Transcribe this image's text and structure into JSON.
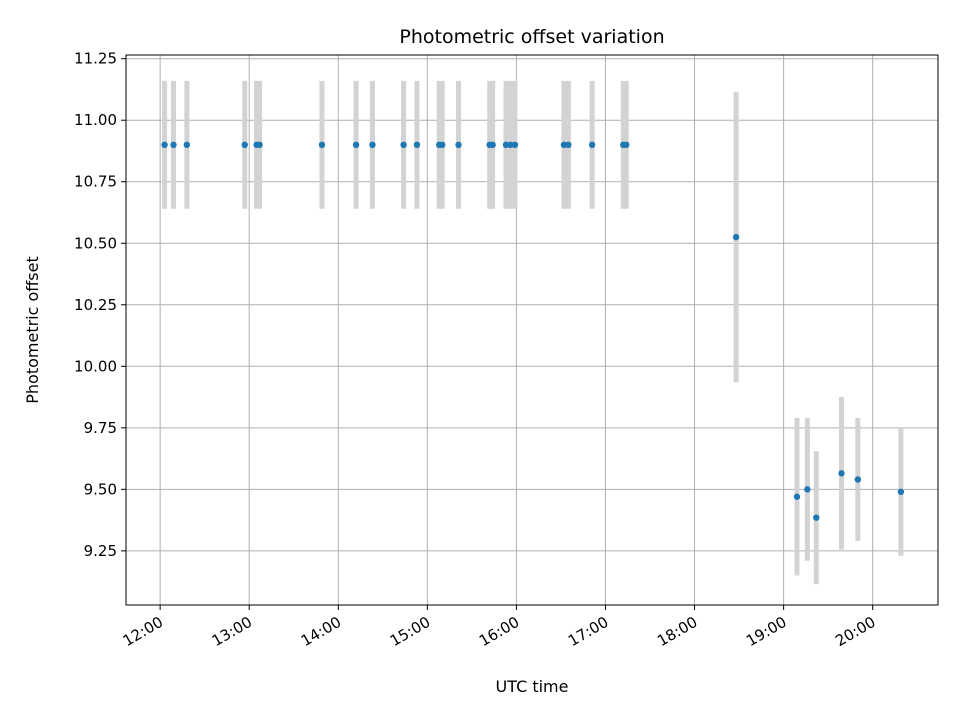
{
  "chart_data": {
    "type": "scatter",
    "title": "Photometric offset variation",
    "xlabel": "UTC time",
    "ylabel": "Photometric offset",
    "x_unit": "time of day (UTC)",
    "xlim": [
      "11:37",
      "20:44"
    ],
    "ylim": [
      9.03,
      11.265
    ],
    "x_ticks": [
      "12:00",
      "13:00",
      "14:00",
      "15:00",
      "16:00",
      "17:00",
      "18:00",
      "19:00",
      "20:00"
    ],
    "y_ticks": [
      "9.25",
      "9.50",
      "9.75",
      "10.00",
      "10.25",
      "10.50",
      "10.75",
      "11.00",
      "11.25"
    ],
    "grid": true,
    "marker_color": "#1f77b4",
    "errorbar_color": "#d3d3d3",
    "points": [
      {
        "time": "12:03",
        "y": 10.9,
        "err": 0.26
      },
      {
        "time": "12:09",
        "y": 10.9,
        "err": 0.26
      },
      {
        "time": "12:18",
        "y": 10.9,
        "err": 0.26
      },
      {
        "time": "12:57",
        "y": 10.9,
        "err": 0.26
      },
      {
        "time": "13:05",
        "y": 10.9,
        "err": 0.26
      },
      {
        "time": "13:07",
        "y": 10.9,
        "err": 0.26
      },
      {
        "time": "13:49",
        "y": 10.9,
        "err": 0.26
      },
      {
        "time": "14:12",
        "y": 10.9,
        "err": 0.26
      },
      {
        "time": "14:23",
        "y": 10.9,
        "err": 0.26
      },
      {
        "time": "14:44",
        "y": 10.9,
        "err": 0.26
      },
      {
        "time": "14:53",
        "y": 10.9,
        "err": 0.26
      },
      {
        "time": "15:08",
        "y": 10.9,
        "err": 0.26
      },
      {
        "time": "15:10",
        "y": 10.9,
        "err": 0.26
      },
      {
        "time": "15:21",
        "y": 10.9,
        "err": 0.26
      },
      {
        "time": "15:42",
        "y": 10.9,
        "err": 0.26
      },
      {
        "time": "15:44",
        "y": 10.9,
        "err": 0.26
      },
      {
        "time": "15:53",
        "y": 10.9,
        "err": 0.26
      },
      {
        "time": "15:56",
        "y": 10.9,
        "err": 0.26
      },
      {
        "time": "15:59",
        "y": 10.9,
        "err": 0.26
      },
      {
        "time": "16:32",
        "y": 10.9,
        "err": 0.26
      },
      {
        "time": "16:35",
        "y": 10.9,
        "err": 0.26
      },
      {
        "time": "16:51",
        "y": 10.9,
        "err": 0.26
      },
      {
        "time": "17:12",
        "y": 10.9,
        "err": 0.26
      },
      {
        "time": "17:14",
        "y": 10.9,
        "err": 0.26
      },
      {
        "time": "18:28",
        "y": 10.525,
        "err": 0.59
      },
      {
        "time": "19:09",
        "y": 9.47,
        "err": 0.32
      },
      {
        "time": "19:16",
        "y": 9.5,
        "err": 0.29
      },
      {
        "time": "19:22",
        "y": 9.385,
        "err": 0.27
      },
      {
        "time": "19:39",
        "y": 9.565,
        "err": 0.31
      },
      {
        "time": "19:50",
        "y": 9.54,
        "err": 0.25
      },
      {
        "time": "20:19",
        "y": 9.49,
        "err": 0.26
      }
    ]
  }
}
